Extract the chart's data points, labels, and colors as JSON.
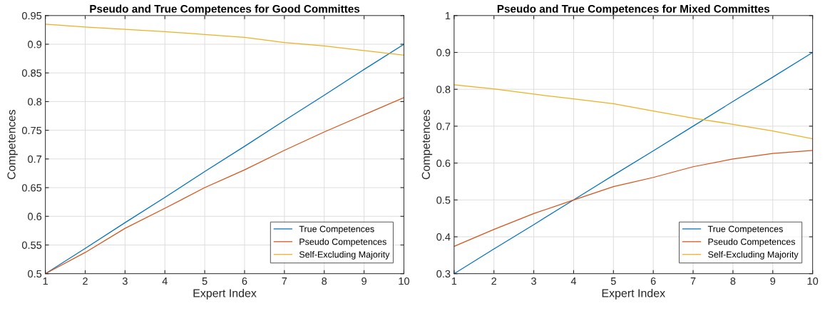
{
  "chart_data": [
    {
      "type": "line",
      "title": "Pseudo and True Competences for Good Committes",
      "xlabel": "Expert Index",
      "ylabel": "Competences",
      "x": [
        1,
        2,
        3,
        4,
        5,
        6,
        7,
        8,
        9,
        10
      ],
      "xlim": [
        1,
        10
      ],
      "xticks": [
        1,
        2,
        3,
        4,
        5,
        6,
        7,
        8,
        9,
        10
      ],
      "ylim": [
        0.5,
        0.95
      ],
      "yticks": [
        0.5,
        0.55,
        0.6,
        0.65,
        0.7,
        0.75,
        0.8,
        0.85,
        0.9,
        0.95
      ],
      "grid": true,
      "legend": "bottom right",
      "series": [
        {
          "name": "True Competences",
          "color": "#0072bd",
          "values": [
            0.5,
            0.544,
            0.589,
            0.633,
            0.678,
            0.722,
            0.767,
            0.811,
            0.856,
            0.9
          ]
        },
        {
          "name": "Pseudo Competences",
          "color": "#d95319",
          "values": [
            0.5,
            0.537,
            0.579,
            0.614,
            0.65,
            0.681,
            0.715,
            0.747,
            0.777,
            0.807
          ]
        },
        {
          "name": "Self-Excluding Majority",
          "color": "#edb120",
          "values": [
            0.935,
            0.93,
            0.926,
            0.922,
            0.917,
            0.912,
            0.903,
            0.897,
            0.889,
            0.881
          ]
        }
      ]
    },
    {
      "type": "line",
      "title": "Pseudo and True Competences for Mixed Committes",
      "xlabel": "Expert Index",
      "ylabel": "Competences",
      "x": [
        1,
        2,
        3,
        4,
        5,
        6,
        7,
        8,
        9,
        10
      ],
      "xlim": [
        1,
        10
      ],
      "xticks": [
        1,
        2,
        3,
        4,
        5,
        6,
        7,
        8,
        9,
        10
      ],
      "ylim": [
        0.3,
        1
      ],
      "yticks": [
        0.3,
        0.4,
        0.5,
        0.6,
        0.7,
        0.8,
        0.9,
        1
      ],
      "grid": true,
      "legend": "bottom right",
      "series": [
        {
          "name": "True Competences",
          "color": "#0072bd",
          "values": [
            0.3,
            0.367,
            0.433,
            0.5,
            0.567,
            0.633,
            0.7,
            0.767,
            0.833,
            0.9
          ]
        },
        {
          "name": "Pseudo Competences",
          "color": "#d95319",
          "values": [
            0.374,
            0.42,
            0.463,
            0.5,
            0.536,
            0.561,
            0.59,
            0.611,
            0.626,
            0.634
          ]
        },
        {
          "name": "Self-Excluding Majority",
          "color": "#edb120",
          "values": [
            0.812,
            0.801,
            0.787,
            0.774,
            0.761,
            0.741,
            0.722,
            0.705,
            0.687,
            0.666
          ]
        }
      ]
    }
  ]
}
